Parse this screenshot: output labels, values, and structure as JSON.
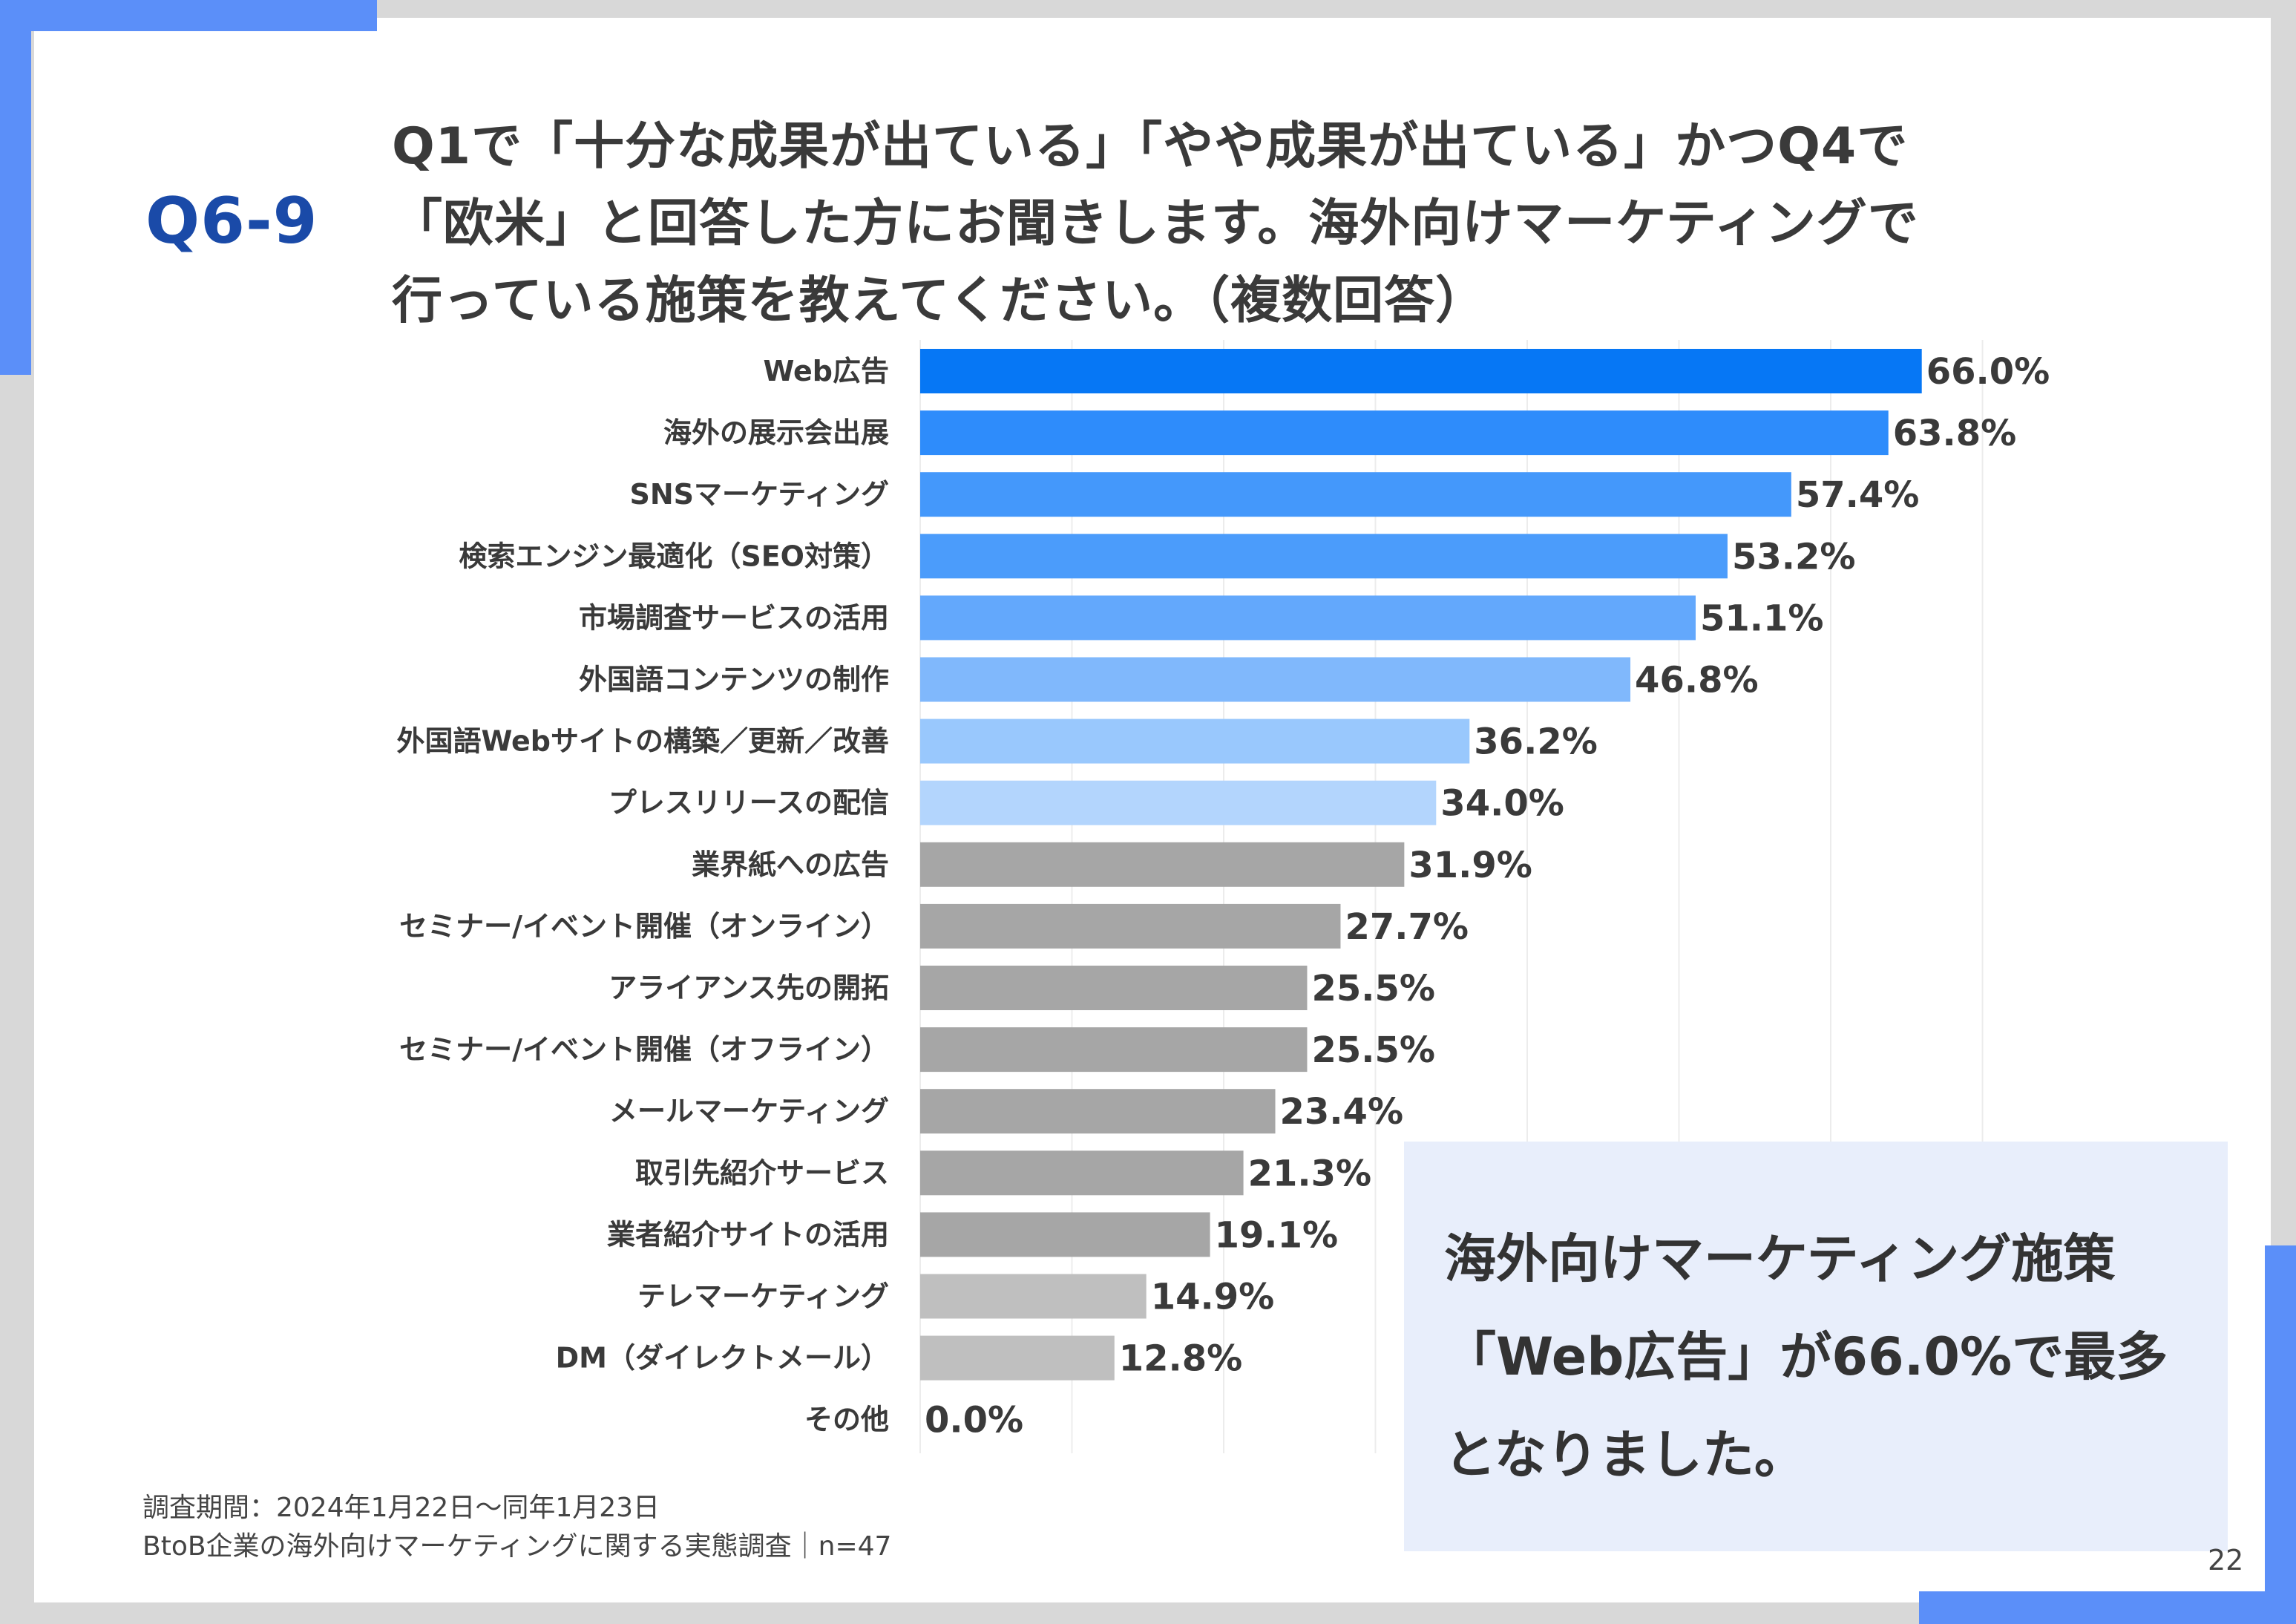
{
  "header": {
    "question_id": "Q6-9",
    "question_lines": [
      "Q1で「十分な成果が出ている」「やや成果が出ている」かつQ4で",
      "「欧米」と回答した方にお聞きします。海外向けマーケティングで",
      "行っている施策を教えてください。（複数回答）"
    ]
  },
  "chart_data": {
    "type": "bar",
    "orientation": "horizontal",
    "value_suffix": "%",
    "xlim": [
      0,
      70
    ],
    "grid": true,
    "categories": [
      "Web広告",
      "海外の展示会出展",
      "SNSマーケティング",
      "検索エンジン最適化（SEO対策）",
      "市場調査サービスの活用",
      "外国語コンテンツの制作",
      "外国語Webサイトの構築／更新／改善",
      "プレスリリースの配信",
      "業界紙への広告",
      "セミナー/イベント開催（オンライン）",
      "アライアンス先の開拓",
      "セミナー/イベント開催（オフライン）",
      "メールマーケティング",
      "取引先紹介サービス",
      "業者紹介サイトの活用",
      "テレマーケティング",
      "DM（ダイレクトメール）",
      "その他"
    ],
    "values": [
      66.0,
      63.8,
      57.4,
      53.2,
      51.1,
      46.8,
      36.2,
      34.0,
      31.9,
      27.7,
      25.5,
      25.5,
      23.4,
      21.3,
      19.1,
      14.9,
      12.8,
      0.0
    ],
    "labels": [
      "66.0%",
      "63.8%",
      "57.4%",
      "53.2%",
      "51.1%",
      "46.8%",
      "36.2%",
      "34.0%",
      "31.9%",
      "27.7%",
      "25.5%",
      "25.5%",
      "23.4%",
      "21.3%",
      "19.1%",
      "14.9%",
      "12.8%",
      "0.0%"
    ],
    "colors": [
      "#0677f5",
      "#2e8cfb",
      "#4498fb",
      "#4b9cfb",
      "#63a8fc",
      "#80b8fc",
      "#99c8fd",
      "#b3d5fd",
      "#a6a6a6",
      "#a6a6a6",
      "#a6a6a6",
      "#a6a6a6",
      "#a6a6a6",
      "#a6a6a6",
      "#a6a6a6",
      "#bfbfbf",
      "#bfbfbf",
      "#bfbfbf"
    ]
  },
  "summary": {
    "text": "海外向けマーケティング施策\n「Web広告」が66.0%で最多\nとなりました。"
  },
  "footnote": {
    "lines": [
      "調査期間：2024年1月22日〜同年1月23日",
      "BtoB企業の海外向けマーケティングに関する実態調査｜n=47"
    ]
  },
  "page_number": "22"
}
